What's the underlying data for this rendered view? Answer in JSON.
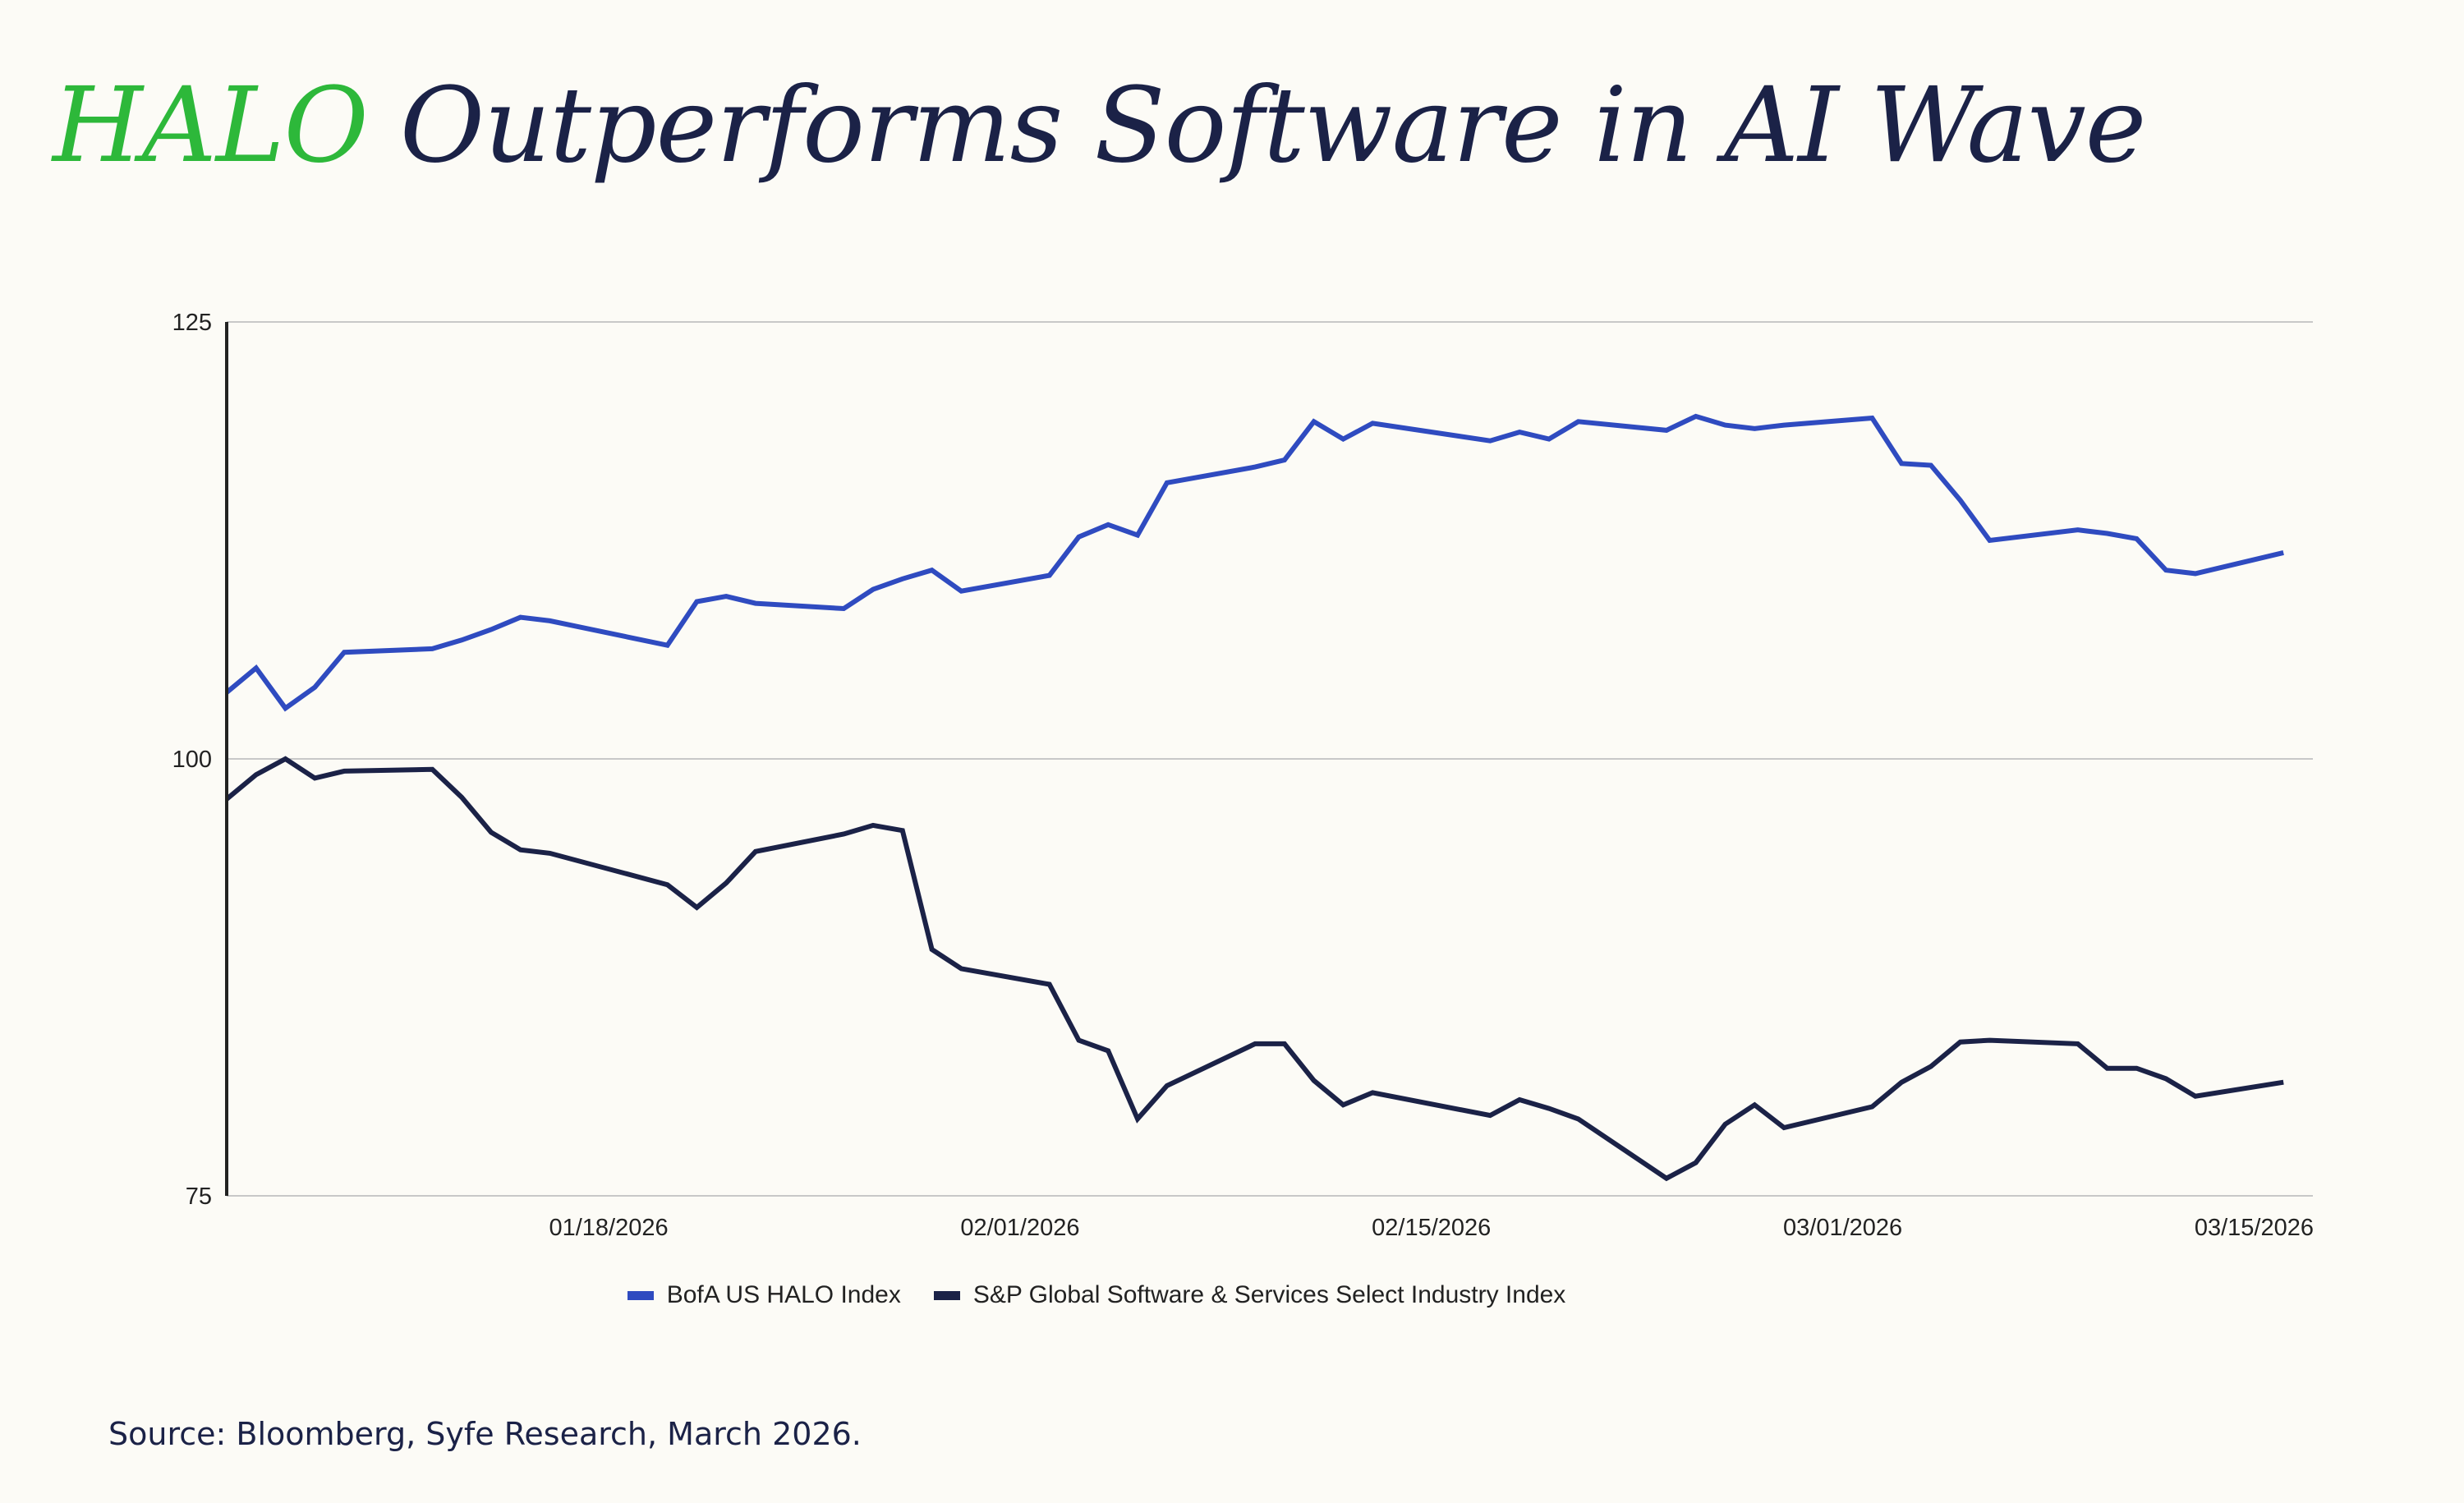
{
  "title": {
    "accent": "HALO",
    "rest": "Outperforms Software in AI Wave",
    "accent_color": "#2DB83A",
    "text_color": "#1B2247"
  },
  "source": "Source: Bloomberg, Syfe Research, March 2026.",
  "chart_data": {
    "type": "line",
    "title": "HALO Outperforms Software in AI Wave",
    "xlabel": "",
    "ylabel": "",
    "ylim": [
      75,
      125
    ],
    "yticks": [
      "125",
      "100",
      "75"
    ],
    "xlim": [
      "2026-01-05",
      "2026-03-17"
    ],
    "xticks": [
      {
        "date": "2026-01-18",
        "label": "01/18/2026"
      },
      {
        "date": "2026-02-01",
        "label": "02/01/2026"
      },
      {
        "date": "2026-02-15",
        "label": "02/15/2026"
      },
      {
        "date": "2026-03-01",
        "label": "03/01/2026"
      },
      {
        "date": "2026-03-15",
        "label": "03/15/2026"
      }
    ],
    "grid": "horizontal",
    "legend": "bottom-center",
    "x": [
      "2026-01-05",
      "2026-01-06",
      "2026-01-07",
      "2026-01-08",
      "2026-01-09",
      "2026-01-12",
      "2026-01-13",
      "2026-01-14",
      "2026-01-15",
      "2026-01-16",
      "2026-01-20",
      "2026-01-21",
      "2026-01-22",
      "2026-01-23",
      "2026-01-26",
      "2026-01-27",
      "2026-01-28",
      "2026-01-29",
      "2026-01-30",
      "2026-02-02",
      "2026-02-03",
      "2026-02-04",
      "2026-02-05",
      "2026-02-06",
      "2026-02-09",
      "2026-02-10",
      "2026-02-11",
      "2026-02-12",
      "2026-02-13",
      "2026-02-17",
      "2026-02-18",
      "2026-02-19",
      "2026-02-20",
      "2026-02-23",
      "2026-02-24",
      "2026-02-25",
      "2026-02-26",
      "2026-02-27",
      "2026-03-02",
      "2026-03-03",
      "2026-03-04",
      "2026-03-05",
      "2026-03-06",
      "2026-03-09",
      "2026-03-10",
      "2026-03-11",
      "2026-03-12",
      "2026-03-13",
      "2026-03-16"
    ],
    "series": [
      {
        "name": "BofA US HALO Index",
        "color": "#2F4BC0",
        "values": [
          103.8,
          105.2,
          102.9,
          104.1,
          106.1,
          106.3,
          106.8,
          107.4,
          108.1,
          107.9,
          106.5,
          109.0,
          109.3,
          108.9,
          108.6,
          109.7,
          110.3,
          110.8,
          109.6,
          110.5,
          112.7,
          113.4,
          112.8,
          115.8,
          116.7,
          117.1,
          119.3,
          118.3,
          119.2,
          118.2,
          118.7,
          118.3,
          119.3,
          118.8,
          119.6,
          119.1,
          118.9,
          119.1,
          119.5,
          116.9,
          116.8,
          114.8,
          112.5,
          113.1,
          112.9,
          112.6,
          110.8,
          110.6,
          111.8
        ]
      },
      {
        "name": "S&P Global Software & Services Select Industry Index",
        "color": "#1B2247",
        "values": [
          97.7,
          99.1,
          100.0,
          98.9,
          99.3,
          99.4,
          97.8,
          95.8,
          94.8,
          94.6,
          92.8,
          91.5,
          92.9,
          94.7,
          95.7,
          96.2,
          95.9,
          89.1,
          88.0,
          87.1,
          83.9,
          83.3,
          79.4,
          81.3,
          83.7,
          83.7,
          81.6,
          80.2,
          80.9,
          79.6,
          80.5,
          80.0,
          79.4,
          76.0,
          76.9,
          79.1,
          80.2,
          78.9,
          80.1,
          81.5,
          82.4,
          83.8,
          83.9,
          83.7,
          82.3,
          82.3,
          81.7,
          80.7,
          81.5
        ]
      }
    ]
  }
}
